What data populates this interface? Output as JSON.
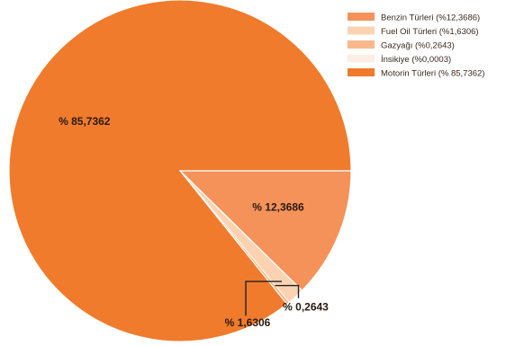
{
  "chart_data": {
    "type": "pie",
    "slices": [
      {
        "label": "Benzin Türleri (%12,3686)",
        "value": 12.3686,
        "data_label": "% 12,3686",
        "color": "#f5925a"
      },
      {
        "label": "Fuel Oil Türleri (%1,6306)",
        "value": 1.6306,
        "data_label": "% 1,6306",
        "color": "#fbd3b3"
      },
      {
        "label": "Gazyağı (%0,2643)",
        "value": 0.2643,
        "data_label": "% 0,2643",
        "color": "#f8b88a"
      },
      {
        "label": "İnsikiye (%0,0003)",
        "value": 0.0003,
        "data_label": "",
        "color": "#fdeee3"
      },
      {
        "label": "Motorin Türleri (% 85,7362)",
        "value": 85.7362,
        "data_label": "% 85,7362",
        "color": "#f07b2c"
      }
    ],
    "start_angle_deg": 0,
    "direction": "clockwise",
    "legend_position": "top-right"
  }
}
